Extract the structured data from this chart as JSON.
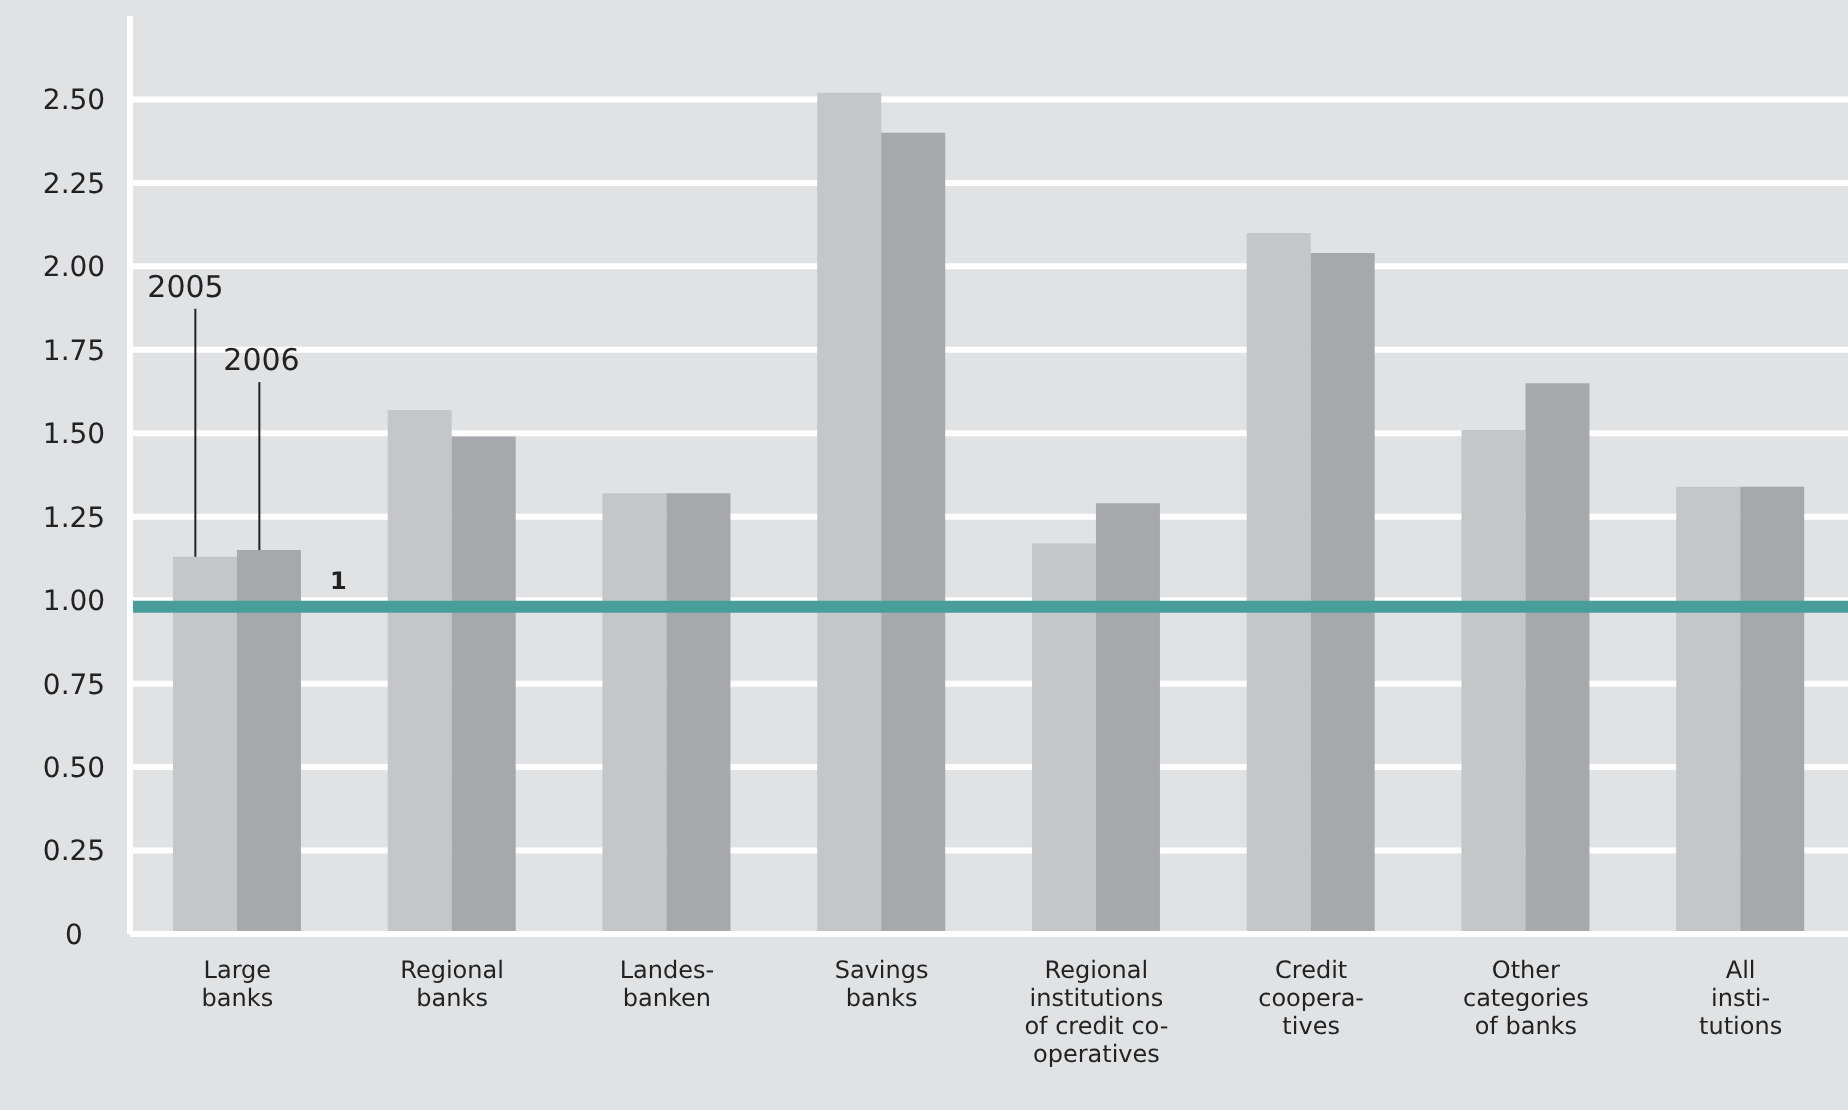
{
  "chart_data": {
    "type": "bar",
    "categories": [
      "Large\nbanks",
      "Regional\nbanks",
      "Landes-\nbanken",
      "Savings\nbanks",
      "Regional\ninstitutions\nof credit co-\noperatives",
      "Credit\ncoopera-\ntives",
      "Other\ncategories\nof banks",
      "All\ninsti-\ntutions"
    ],
    "series": [
      {
        "name": "2005",
        "color": "#c5c6c8",
        "values": [
          1.13,
          1.57,
          1.32,
          2.52,
          1.17,
          2.1,
          1.51,
          1.34
        ]
      },
      {
        "name": "2006",
        "color": "#a7a8ab",
        "values": [
          1.15,
          1.49,
          1.32,
          2.4,
          1.29,
          2.04,
          1.65,
          1.34
        ]
      }
    ],
    "ylim": [
      0,
      2.75
    ],
    "yticks": [
      0,
      {
        "value": 0.25,
        "label": "0.25"
      },
      {
        "value": 0.5,
        "label": "0.50"
      },
      {
        "value": 0.75,
        "label": "0.75"
      },
      {
        "value": 1,
        "label": "1.00"
      },
      {
        "value": 1.25,
        "label": "1.25"
      },
      {
        "value": 1.5,
        "label": "1.50"
      },
      {
        "value": 1.75,
        "label": "1.75"
      },
      {
        "value": 2,
        "label": "2.00"
      },
      {
        "value": 2.25,
        "label": "2.25"
      },
      {
        "value": 2.5,
        "label": "2.50"
      }
    ],
    "grid": "y",
    "ref_lines": [
      {
        "axis": "y",
        "value": 0.98,
        "label": "1",
        "color": "#4a9e9a"
      }
    ]
  }
}
